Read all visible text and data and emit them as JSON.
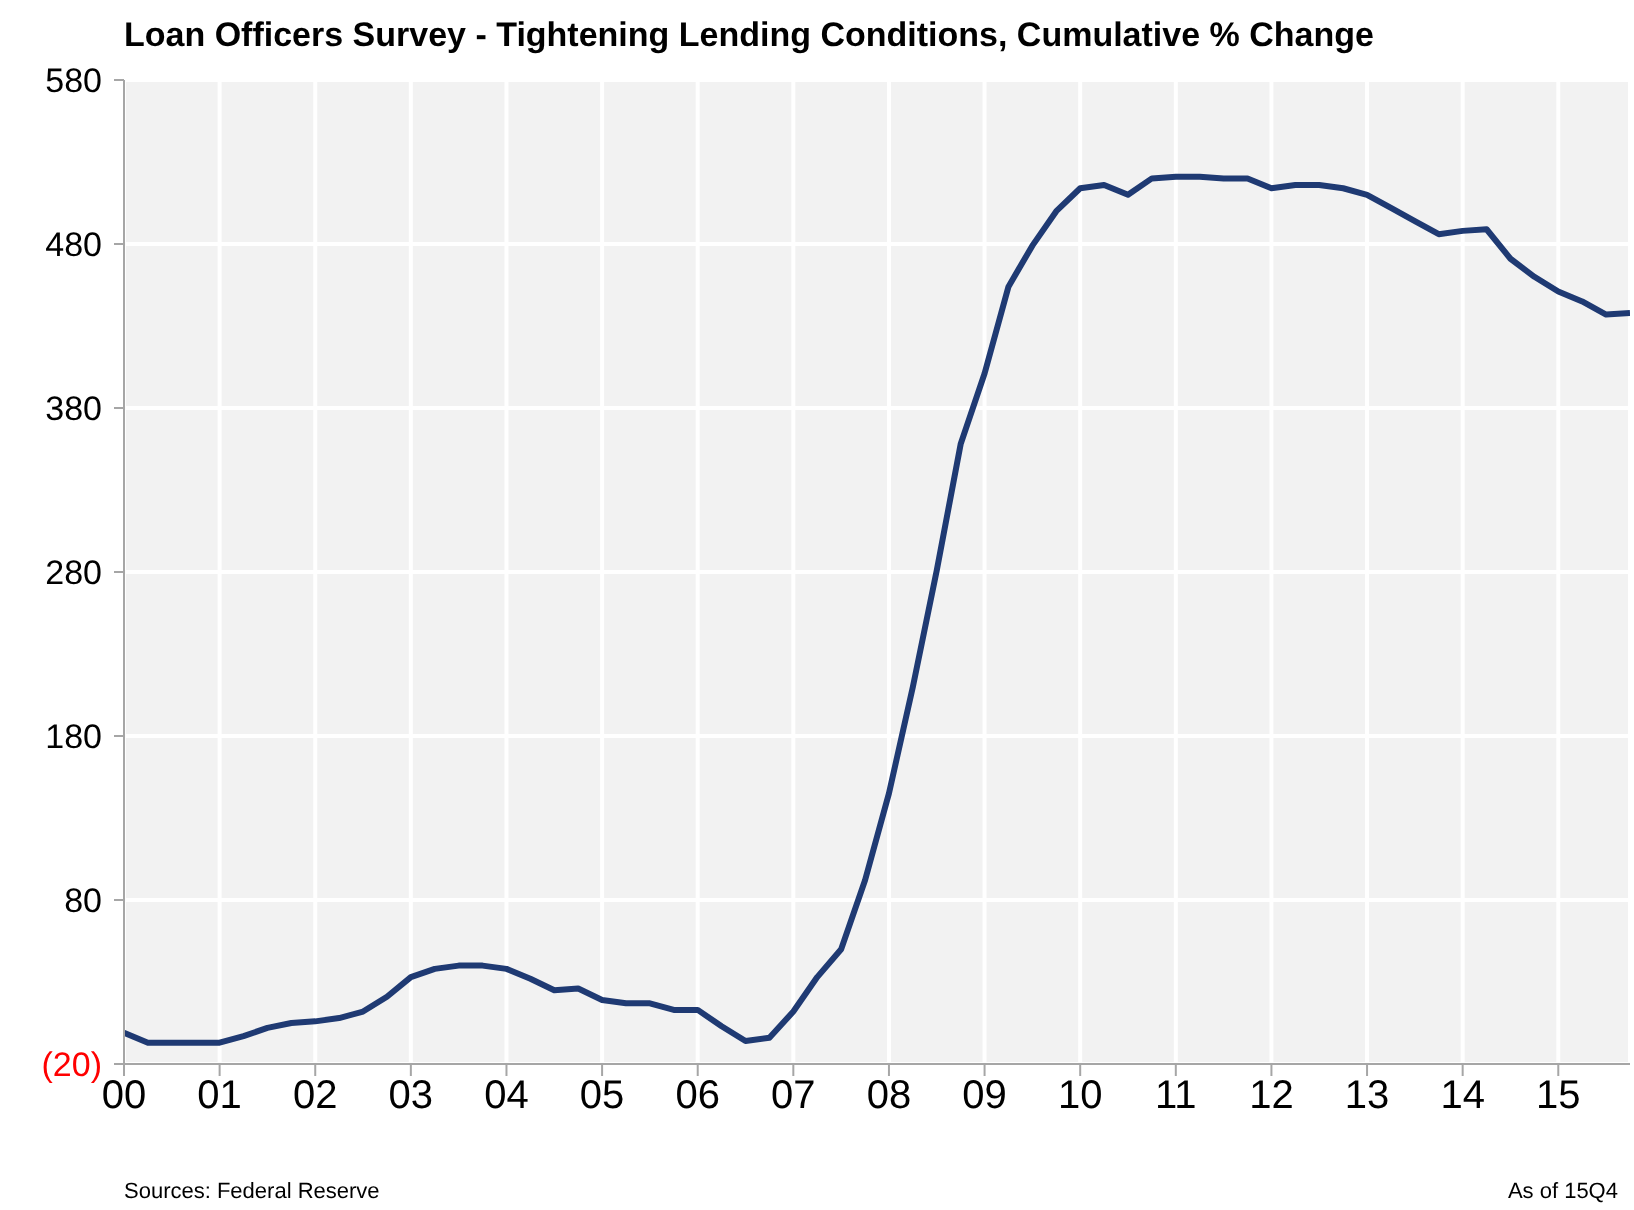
{
  "chart_data": {
    "type": "line",
    "title": "Loan Officers Survey - Tightening Lending Conditions, Cumulative % Change",
    "categories": [
      "00",
      null,
      null,
      null,
      "01",
      null,
      null,
      null,
      "02",
      null,
      null,
      null,
      "03",
      null,
      null,
      null,
      "04",
      null,
      null,
      null,
      "05",
      null,
      null,
      null,
      "06",
      null,
      null,
      null,
      "07",
      null,
      null,
      null,
      "08",
      null,
      null,
      null,
      "09",
      null,
      null,
      null,
      "10",
      null,
      null,
      null,
      "11",
      null,
      null,
      null,
      "12",
      null,
      null,
      null,
      "13",
      null,
      null,
      null,
      "14",
      null,
      null,
      null,
      "15",
      null,
      null,
      null
    ],
    "series": [
      {
        "color": "#1f3a73",
        "values": [
          -1,
          -7,
          -7,
          -7,
          -7,
          -3,
          2,
          5,
          6,
          8,
          12,
          21,
          33,
          38,
          40,
          40,
          38,
          32,
          25,
          26,
          19,
          17,
          17,
          13,
          13,
          3,
          -6,
          -4,
          12,
          33,
          50,
          92,
          145,
          210,
          281,
          358,
          401,
          454,
          479,
          500,
          514,
          516,
          510,
          520,
          521,
          521,
          520,
          520,
          514,
          516,
          516,
          514,
          510,
          502,
          494,
          486,
          488,
          489,
          471,
          460,
          451,
          445,
          437,
          438
        ]
      }
    ],
    "ylim": [
      -20,
      580
    ],
    "yticks": [
      {
        "value": -20,
        "label": "(20)"
      },
      80,
      180,
      280,
      380,
      480,
      580
    ],
    "grid": true,
    "legend": false,
    "marker": "none",
    "line_style": "solid",
    "annotations": [
      "Sources: Federal Reserve",
      "As of 15Q4"
    ]
  }
}
